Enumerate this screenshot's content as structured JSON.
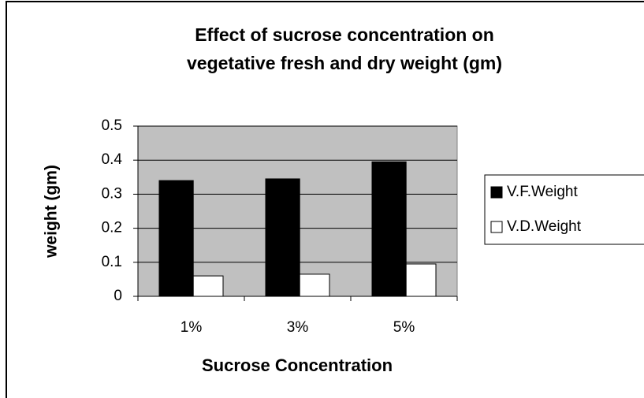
{
  "chart_data": {
    "type": "bar",
    "title": [
      "Effect of sucrose concentration on",
      "vegetative fresh and dry weight (gm)"
    ],
    "x_label": "Sucrose Concentration",
    "y_label": "weight (gm)",
    "categories": [
      "1%",
      "3%",
      "5%"
    ],
    "series": [
      {
        "name": "V.F.Weight",
        "color": "#000000",
        "values": [
          0.34,
          0.345,
          0.395
        ]
      },
      {
        "name": "V.D.Weight",
        "color": "#ffffff",
        "values": [
          0.06,
          0.065,
          0.095
        ]
      }
    ],
    "ylim": [
      0,
      0.5
    ],
    "yticks": [
      0,
      0.1,
      0.2,
      0.3,
      0.4,
      0.5
    ],
    "grid": true,
    "legend": "right"
  }
}
